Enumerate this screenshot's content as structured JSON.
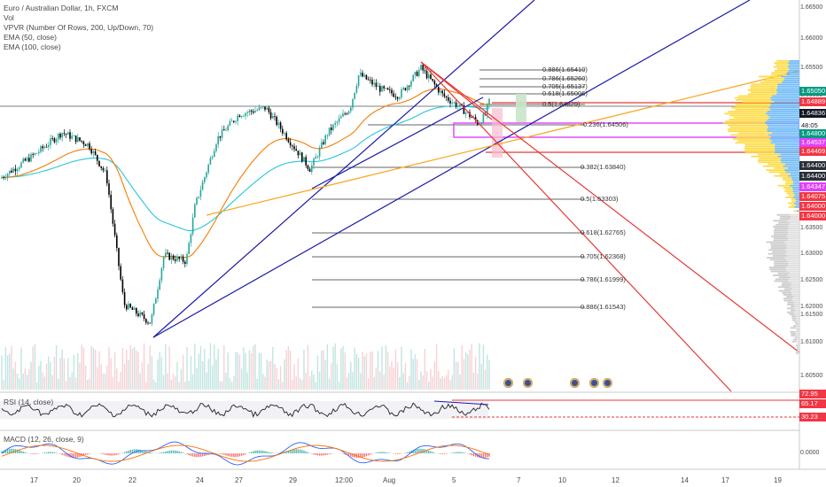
{
  "legend": {
    "symbol": "Euro / Australian Dollar, 1h, FXCM",
    "vol": "Vol",
    "vpvr": "VPVR (Number Of Rows, 200, Up/Down, 70)",
    "ema50": "EMA (50, close)",
    "ema100": "EMA (100, close)"
  },
  "rsi": {
    "label": "RSI (14, close)",
    "levels": [
      "72.95",
      "65.17",
      "30.23"
    ]
  },
  "macd": {
    "label": "MACD (12, 26, close, 9)",
    "axis_value": "0.0000"
  },
  "price_axis": {
    "ticks": [
      "1.66500",
      "1.66000",
      "1.65500",
      "1.65050",
      "1.64889",
      "1.64836",
      "48:05",
      "1.64800",
      "1.64537",
      "1.64469",
      "1.64400",
      "1.64400",
      "1.64347",
      "1.64075",
      "1.64000",
      "1.64000",
      "1.63500",
      "1.63000",
      "1.62500",
      "1.62000",
      "1.61500",
      "1.61000",
      "1.60500"
    ]
  },
  "price_tags": [
    {
      "text": "1.65050",
      "bg": "#089981",
      "fg": "#ffffff"
    },
    {
      "text": "1.64889",
      "bg": "#f23645",
      "fg": "#ffffff"
    },
    {
      "text": "1.64836",
      "bg": "#131722",
      "fg": "#ffffff"
    },
    {
      "text": "48:05",
      "bg": "#ffffff",
      "fg": "#131722"
    },
    {
      "text": "1.64800",
      "bg": "#089981",
      "fg": "#ffffff"
    },
    {
      "text": "1.64537",
      "bg": "#e040fb",
      "fg": "#ffffff"
    },
    {
      "text": "1.64469",
      "bg": "#f23645",
      "fg": "#ffffff"
    },
    {
      "text": "1.64400",
      "bg": "#2a2e39",
      "fg": "#ffffff"
    },
    {
      "text": "1.64400",
      "bg": "#2a2e39",
      "fg": "#ffffff"
    },
    {
      "text": "1.64347",
      "bg": "#e040fb",
      "fg": "#ffffff"
    },
    {
      "text": "1.64075",
      "bg": "#f23645",
      "fg": "#ffffff"
    },
    {
      "text": "1.64000",
      "bg": "#f23645",
      "fg": "#ffffff"
    },
    {
      "text": "1.64000",
      "bg": "#f23645",
      "fg": "#ffffff"
    }
  ],
  "time_axis": [
    "17",
    "20",
    "22",
    "24",
    "27",
    "29",
    "12:00",
    "Aug",
    "5",
    "7",
    "10",
    "12",
    "14",
    "17",
    "19"
  ],
  "fib_levels": [
    {
      "label": "0.886(1.65410)"
    },
    {
      "label": "0.786(1.65260)"
    },
    {
      "label": "0.705(1.65137)"
    },
    {
      "label": "0.618(1.65006)"
    },
    {
      "label": "0.5(1.64829)"
    },
    {
      "label": "0.236(1.64506)"
    },
    {
      "label": "0.382(1.63840)"
    },
    {
      "label": "0.5(1.63303)"
    },
    {
      "label": "0.618(1.62765)"
    },
    {
      "label": "0.705(1.62368)"
    },
    {
      "label": "0.786(1.61999)"
    },
    {
      "label": "0.886(1.61543)"
    }
  ],
  "colors": {
    "up": "#26a69a",
    "down": "#000000",
    "ema50": "#f57c00",
    "ema100": "#26c6da",
    "trend_blue": "#1a1aa8",
    "trend_red": "#e53935",
    "trend_orange": "#f9a825",
    "magenta": "#e040fb",
    "vpvr_up": "#64b5f6",
    "vpvr_down": "#fdd835"
  }
}
